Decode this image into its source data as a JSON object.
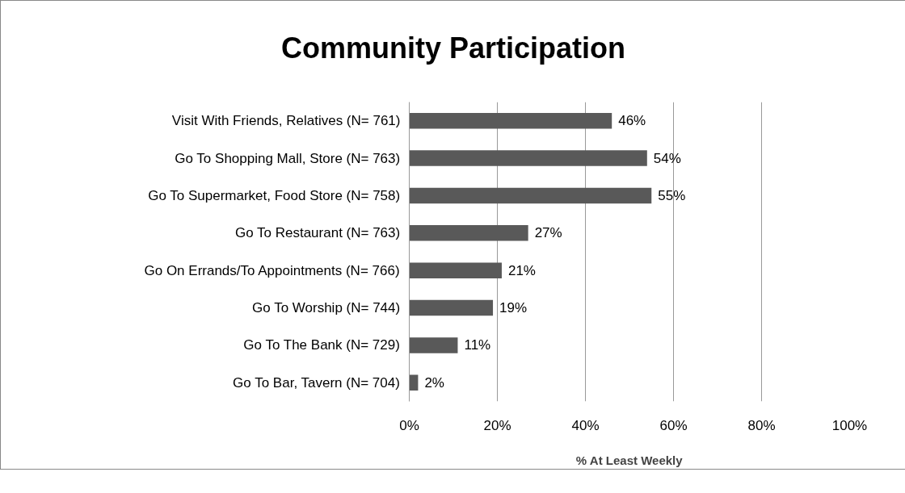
{
  "chart_data": {
    "type": "bar",
    "orientation": "horizontal",
    "title": "Community Participation",
    "xlabel": "% At Least Weekly",
    "categories": [
      "Visit With Friends, Relatives (N= 761)",
      "Go To Shopping Mall, Store (N= 763)",
      "Go To Supermarket, Food Store (N= 758)",
      "Go To Restaurant (N= 763)",
      "Go On Errands/To Appointments (N= 766)",
      "Go To Worship (N= 744)",
      "Go To The Bank (N= 729)",
      "Go To Bar, Tavern (N= 704)"
    ],
    "values": [
      46,
      54,
      55,
      27,
      21,
      19,
      11,
      2
    ],
    "value_labels": [
      "46%",
      "54%",
      "55%",
      "27%",
      "21%",
      "19%",
      "11%",
      "2%"
    ],
    "color": "#595959",
    "xlim": [
      0,
      100
    ],
    "xticks": [
      {
        "value": 0,
        "label": "0%"
      },
      {
        "value": 20,
        "label": "20%"
      },
      {
        "value": 40,
        "label": "40%"
      },
      {
        "value": 60,
        "label": "60%"
      },
      {
        "value": 80,
        "label": "80%"
      },
      {
        "value": 100,
        "label": "100%"
      }
    ],
    "grid": "x"
  }
}
